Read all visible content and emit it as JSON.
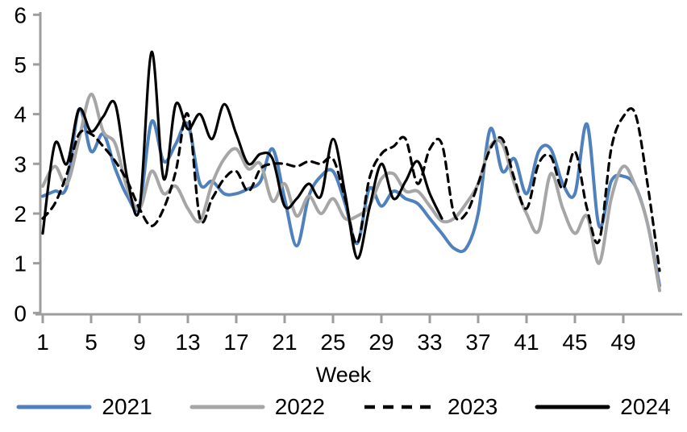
{
  "page": {
    "background": "#ffffff"
  },
  "chart_data": {
    "type": "line",
    "title": "",
    "xlabel": "Week",
    "ylabel": "",
    "x_unit": "week-of-year",
    "xlim": [
      1,
      52
    ],
    "ylim": [
      0,
      6
    ],
    "x_ticks": [
      1,
      5,
      9,
      13,
      17,
      21,
      25,
      29,
      33,
      37,
      41,
      45,
      49
    ],
    "y_ticks": [
      0,
      1,
      2,
      3,
      4,
      5,
      6
    ],
    "grid": false,
    "legend_position": "bottom",
    "axis_color": "#9d9d9d",
    "text_color": "#000000",
    "series": [
      {
        "name": "2021",
        "color": "#4f81bd",
        "style": "solid",
        "x_start": 1,
        "values": [
          2.35,
          2.45,
          2.55,
          4.1,
          3.25,
          3.6,
          2.9,
          2.35,
          2.15,
          3.85,
          3.05,
          3.4,
          3.8,
          2.6,
          2.65,
          2.4,
          2.4,
          2.5,
          2.65,
          3.3,
          2.3,
          1.35,
          2.35,
          2.75,
          2.85,
          2.2,
          1.4,
          2.5,
          2.15,
          2.45,
          2.3,
          2.2,
          1.9,
          1.6,
          1.3,
          1.3,
          2.0,
          3.7,
          2.85,
          3.1,
          2.4,
          3.25,
          3.3,
          2.6,
          2.4,
          3.8,
          1.75,
          2.65,
          2.75,
          2.55,
          1.8,
          0.55
        ]
      },
      {
        "name": "2022",
        "color": "#a6a6a6",
        "style": "solid",
        "x_start": 1,
        "values": [
          2.55,
          2.95,
          2.6,
          3.5,
          4.4,
          3.65,
          3.4,
          2.5,
          2.1,
          2.85,
          2.4,
          2.55,
          2.1,
          1.85,
          2.6,
          3.1,
          3.3,
          2.9,
          3.0,
          2.25,
          2.6,
          1.95,
          2.35,
          2.0,
          2.3,
          1.9,
          1.95,
          2.15,
          2.7,
          2.8,
          2.45,
          2.45,
          2.15,
          1.85,
          1.9,
          2.2,
          2.6,
          3.35,
          3.4,
          2.6,
          2.0,
          1.65,
          2.8,
          2.1,
          1.6,
          1.95,
          1.0,
          2.3,
          2.95,
          2.55,
          1.8,
          0.45
        ]
      },
      {
        "name": "2023",
        "color": "#000000",
        "style": "dashed",
        "x_start": 1,
        "values": [
          1.9,
          2.2,
          2.8,
          3.6,
          3.6,
          3.35,
          3.05,
          2.65,
          2.1,
          1.75,
          2.1,
          2.85,
          4.0,
          1.9,
          2.3,
          2.7,
          2.85,
          2.45,
          2.9,
          3.0,
          3.0,
          2.95,
          3.05,
          3.0,
          3.1,
          2.3,
          1.4,
          2.7,
          3.2,
          3.35,
          3.5,
          2.6,
          3.3,
          3.4,
          2.0,
          2.0,
          2.6,
          3.3,
          3.5,
          2.7,
          2.1,
          3.0,
          3.15,
          2.5,
          3.25,
          2.1,
          1.45,
          3.3,
          3.95,
          4.0,
          2.6,
          0.85
        ]
      },
      {
        "name": "2024",
        "color": "#000000",
        "style": "solid",
        "x_start": 1,
        "values": [
          1.6,
          3.4,
          3.0,
          4.1,
          3.65,
          3.95,
          4.2,
          2.7,
          2.1,
          5.25,
          2.7,
          4.2,
          3.7,
          4.0,
          3.5,
          4.2,
          3.6,
          3.0,
          3.2,
          3.1,
          2.15,
          2.3,
          2.6,
          2.35,
          3.5,
          2.4,
          1.1,
          2.1,
          3.0,
          2.3,
          2.65,
          3.05,
          2.4,
          1.9
        ]
      }
    ]
  }
}
